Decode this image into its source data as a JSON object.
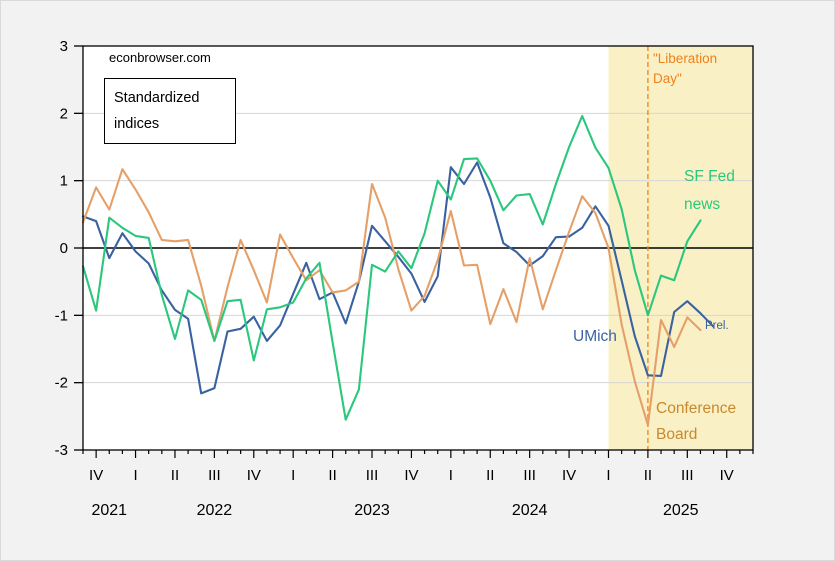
{
  "header": {
    "watermark": "econbrowser.com",
    "note": "Standardized indices"
  },
  "annotations": {
    "liberation_day": [
      "\"Liberation",
      "Day\""
    ],
    "sf_fed_news": [
      "SF Fed",
      "news"
    ],
    "umich": "UMich",
    "prel": "Prel.",
    "conference_board": [
      "Conference",
      "Board"
    ]
  },
  "colors": {
    "canvas_bg": "#F2F2F2",
    "plot_bg": "#FFFFFF",
    "shading": "#FAF0C6",
    "grid": "#D6D6D6",
    "axis": "#000000",
    "liberation_orange": "#F08019",
    "conference_board_label": "#C8892E",
    "umich_label": "#3A62A0",
    "sf_fed_label": "#2BC77D"
  },
  "chart_data": {
    "type": "line",
    "title": "Standardized indices",
    "frequency": "monthly",
    "x_first_month": "2021-09",
    "x_last_month": "2025-12",
    "grid": true,
    "y_axis": {
      "min": -3,
      "max": 3,
      "ticks": [
        3,
        2,
        1,
        0,
        -1,
        -2,
        -3
      ]
    },
    "x_axis": {
      "quarter_labels": [
        "IV",
        "I",
        "II",
        "III",
        "IV",
        "I",
        "II",
        "III",
        "IV",
        "I",
        "II",
        "III",
        "IV",
        "I",
        "II",
        "III",
        "IV"
      ],
      "quarter_month_indices": [
        1,
        4,
        7,
        10,
        13,
        16,
        19,
        22,
        25,
        28,
        31,
        34,
        37,
        40,
        43,
        46,
        49
      ],
      "year_labels": [
        "2021",
        "2022",
        "2023",
        "2024",
        "2025"
      ],
      "year_spans": [
        [
          0,
          4
        ],
        [
          4,
          16
        ],
        [
          16,
          28
        ],
        [
          28,
          40
        ],
        [
          40,
          51
        ]
      ]
    },
    "shading": {
      "start_month_index": 40,
      "end_month_index": 51,
      "note": "2025 shaded region"
    },
    "vline": {
      "month_index": 43,
      "style": "dashed",
      "label": "Liberation Day"
    },
    "series": [
      {
        "name": "UMich",
        "color": "#3A62A0",
        "start_month_index": 0,
        "values": [
          0.47,
          0.4,
          -0.15,
          0.22,
          -0.05,
          -0.23,
          -0.63,
          -0.92,
          -1.05,
          -2.16,
          -2.08,
          -1.24,
          -1.2,
          -1.02,
          -1.38,
          -1.15,
          -0.68,
          -0.22,
          -0.76,
          -0.66,
          -1.12,
          -0.5,
          0.33,
          0.1,
          -0.13,
          -0.38,
          -0.8,
          -0.42,
          1.2,
          0.95,
          1.27,
          0.75,
          0.07,
          -0.06,
          -0.26,
          -0.12,
          0.16,
          0.17,
          0.3,
          0.62,
          0.33,
          -0.48,
          -1.31,
          -1.89,
          -1.9,
          -0.95,
          -0.79,
          -0.97,
          -1.17
        ]
      },
      {
        "name": "Conference Board",
        "color": "#E5A069",
        "start_month_index": 0,
        "values": [
          0.38,
          0.9,
          0.57,
          1.17,
          0.87,
          0.53,
          0.12,
          0.1,
          0.12,
          -0.56,
          -1.38,
          -0.58,
          0.12,
          -0.33,
          -0.81,
          0.2,
          -0.15,
          -0.48,
          -0.33,
          -0.66,
          -0.63,
          -0.5,
          0.95,
          0.45,
          -0.31,
          -0.93,
          -0.71,
          -0.18,
          0.55,
          -0.26,
          -0.25,
          -1.13,
          -0.61,
          -1.1,
          -0.15,
          -0.91,
          -0.33,
          0.24,
          0.77,
          0.52,
          0.0,
          -1.13,
          -1.98,
          -2.63,
          -1.07,
          -1.47,
          -1.03,
          -1.22
        ]
      },
      {
        "name": "SF Fed news",
        "color": "#2BC77D",
        "start_month_index": 0,
        "values": [
          -0.27,
          -0.93,
          0.45,
          0.3,
          0.18,
          0.15,
          -0.7,
          -1.35,
          -0.63,
          -0.77,
          -1.38,
          -0.79,
          -0.77,
          -1.67,
          -0.91,
          -0.88,
          -0.81,
          -0.45,
          -0.22,
          -1.4,
          -2.55,
          -2.1,
          -0.25,
          -0.35,
          -0.05,
          -0.3,
          0.22,
          1.0,
          0.72,
          1.32,
          1.33,
          1.0,
          0.56,
          0.78,
          0.8,
          0.35,
          0.95,
          1.5,
          1.96,
          1.49,
          1.19,
          0.58,
          -0.33,
          -1.0,
          -0.41,
          -0.48,
          0.1,
          0.41
        ]
      }
    ]
  }
}
